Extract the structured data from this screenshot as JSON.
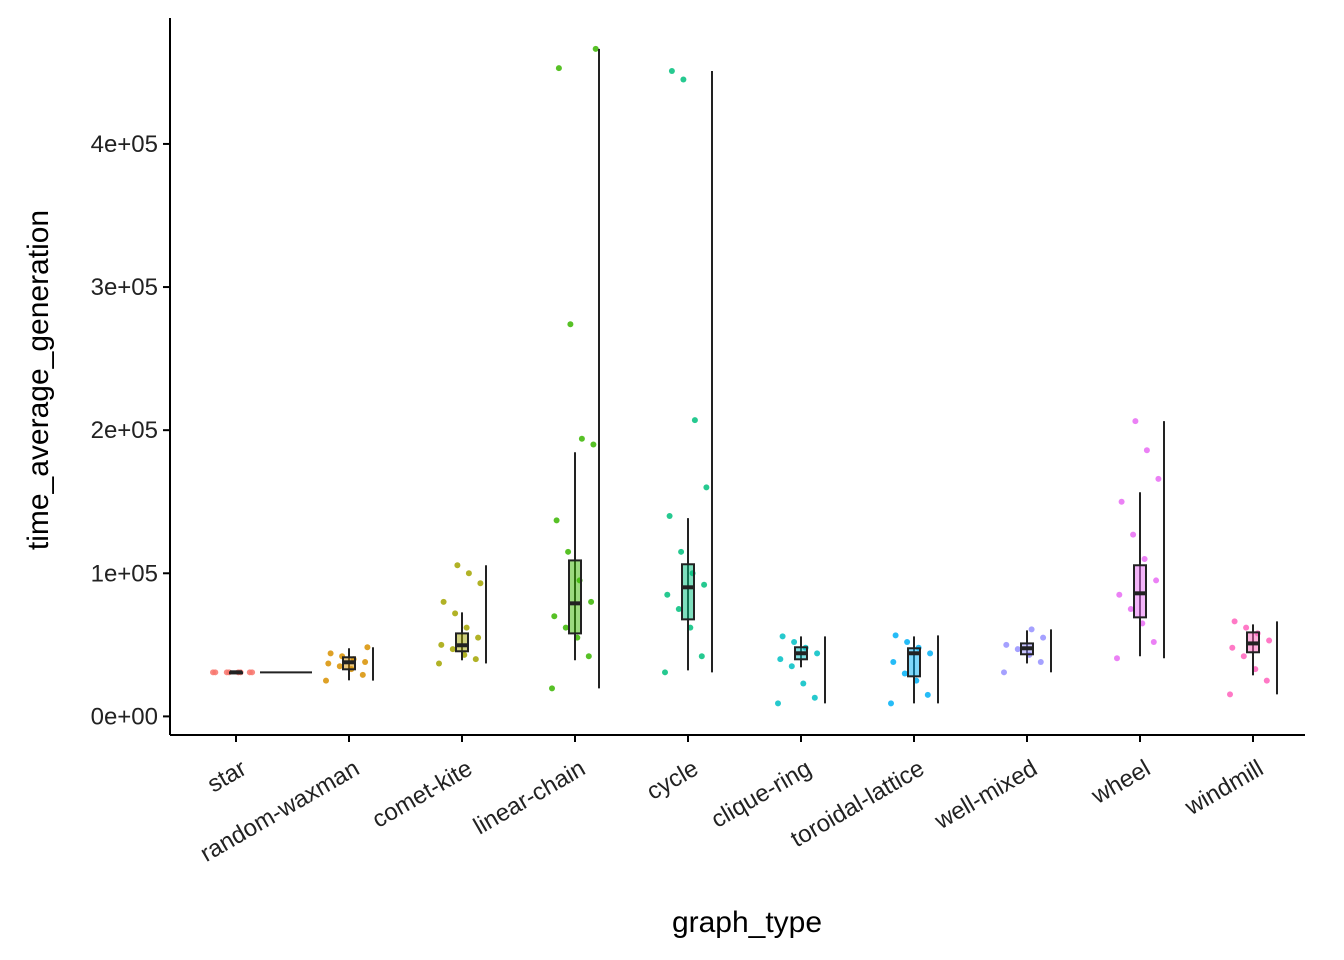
{
  "chart_data": {
    "type": "box",
    "x_label": "graph_type",
    "y_label": "time_average_generation",
    "categories": [
      "star",
      "random-waxman",
      "comet-kite",
      "linear-chain",
      "cycle",
      "clique-ring",
      "toroidal-lattice",
      "well-mixed",
      "wheel",
      "windmill"
    ],
    "ylim": [
      -13000,
      488000
    ],
    "yticks": [
      {
        "value": 0,
        "label": "0e+00"
      },
      {
        "value": 100000,
        "label": "1e+05"
      },
      {
        "value": 200000,
        "label": "2e+05"
      },
      {
        "value": 300000,
        "label": "3e+05"
      },
      {
        "value": 400000,
        "label": "4e+05"
      }
    ],
    "boxes": [
      {
        "color": "#F8766D",
        "whisker_low": 30800,
        "q1": 30800,
        "median": 30800,
        "q3": 30800,
        "whisker_high": 30800,
        "min": 30800,
        "max": 30800,
        "points": [
          30800,
          30800,
          30800,
          30800,
          30800,
          30800,
          30800,
          30800
        ]
      },
      {
        "color": "#D89000",
        "whisker_low": 25200,
        "q1": 32900,
        "median": 37800,
        "q3": 41300,
        "whisker_high": 47600,
        "min": 25000,
        "max": 48300,
        "points": [
          25000,
          29000,
          33000,
          35000,
          37000,
          38000,
          40000,
          42000,
          44000,
          48300
        ]
      },
      {
        "color": "#A3A500",
        "whisker_low": 39200,
        "q1": 45500,
        "median": 49700,
        "q3": 58000,
        "whisker_high": 72700,
        "min": 37000,
        "max": 105600,
        "points": [
          37000,
          40000,
          43000,
          47000,
          50000,
          55000,
          62000,
          72000,
          80000,
          93000,
          100000,
          105600
        ]
      },
      {
        "color": "#39B600",
        "whisker_low": 39200,
        "q1": 58000,
        "median": 79000,
        "q3": 109000,
        "whisker_high": 184600,
        "min": 19600,
        "max": 466400,
        "points": [
          19600,
          42000,
          55000,
          62000,
          70000,
          80000,
          95000,
          115000,
          137000,
          190000,
          194000,
          274000,
          453000,
          466400
        ]
      },
      {
        "color": "#00BF7D",
        "whisker_low": 32200,
        "q1": 67800,
        "median": 90200,
        "q3": 106300,
        "whisker_high": 138500,
        "min": 30800,
        "max": 451000,
        "points": [
          30800,
          42000,
          62000,
          75000,
          85000,
          92000,
          100000,
          115000,
          140000,
          160000,
          207000,
          445000,
          451000
        ]
      },
      {
        "color": "#00BFC4",
        "whisker_low": 34300,
        "q1": 39900,
        "median": 44100,
        "q3": 48300,
        "whisker_high": 55900,
        "min": 9100,
        "max": 55900,
        "points": [
          9100,
          13000,
          23000,
          35000,
          40000,
          44000,
          48000,
          52000,
          55900
        ]
      },
      {
        "color": "#00B0F6",
        "whisker_low": 9100,
        "q1": 28000,
        "median": 44100,
        "q3": 47600,
        "whisker_high": 55900,
        "min": 9100,
        "max": 56600,
        "points": [
          9100,
          15000,
          25000,
          30000,
          38000,
          44000,
          48000,
          52000,
          56600
        ]
      },
      {
        "color": "#9590FF",
        "whisker_low": 37000,
        "q1": 43400,
        "median": 47600,
        "q3": 51000,
        "whisker_high": 60100,
        "min": 30800,
        "max": 60800,
        "points": [
          30800,
          38000,
          43000,
          47000,
          50000,
          55000,
          60800
        ]
      },
      {
        "color": "#E76BF3",
        "whisker_low": 42000,
        "q1": 69200,
        "median": 86000,
        "q3": 105600,
        "whisker_high": 156600,
        "min": 40600,
        "max": 206300,
        "points": [
          40600,
          52000,
          65000,
          75000,
          85000,
          95000,
          110000,
          127000,
          150000,
          166000,
          186000,
          206300
        ]
      },
      {
        "color": "#FF62BC",
        "whisker_low": 28700,
        "q1": 44800,
        "median": 51000,
        "q3": 58700,
        "whisker_high": 64300,
        "min": 15400,
        "max": 66400,
        "points": [
          15400,
          25000,
          33000,
          42000,
          48000,
          53000,
          58000,
          62000,
          66400
        ]
      }
    ]
  }
}
